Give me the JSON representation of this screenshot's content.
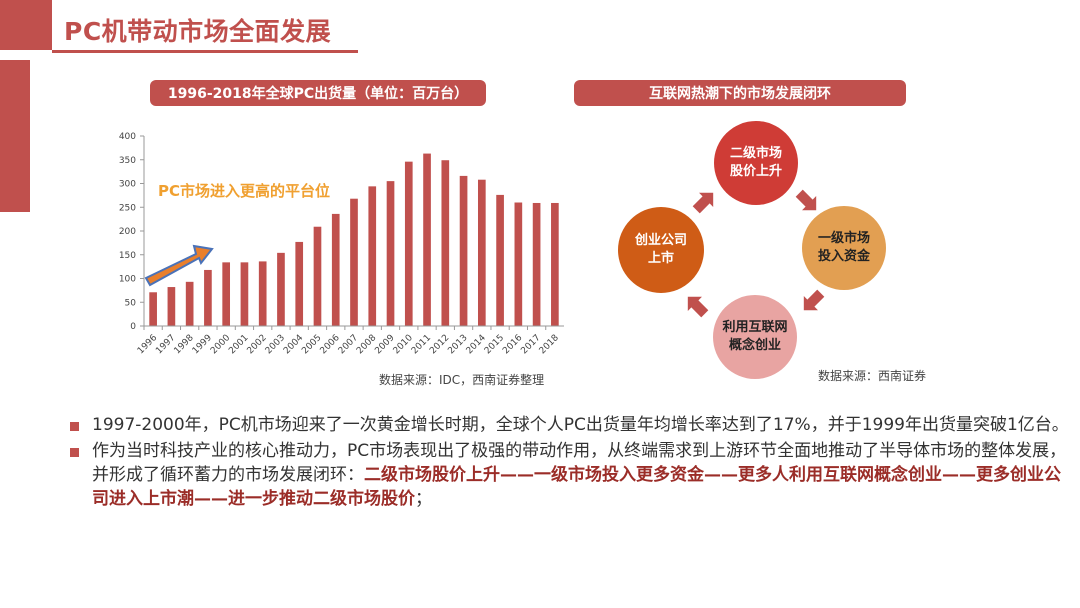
{
  "slide": {
    "title": "PC机带动市场全面发展"
  },
  "left_panel": {
    "heading": "1996-2018年全球PC出货量（单位：百万台）",
    "annotation": "PC市场进入更高的平台位",
    "source": "数据来源：IDC，西南证券整理"
  },
  "chart_data": {
    "type": "bar",
    "title": "1996-2018年全球PC出货量（单位：百万台）",
    "categories": [
      "1996",
      "1997",
      "1998",
      "1999",
      "2000",
      "2001",
      "2002",
      "2003",
      "2004",
      "2005",
      "2006",
      "2007",
      "2008",
      "2009",
      "2010",
      "2011",
      "2012",
      "2013",
      "2014",
      "2015",
      "2016",
      "2017",
      "2018"
    ],
    "values": [
      71,
      82,
      93,
      118,
      134,
      134,
      136,
      154,
      177,
      209,
      236,
      268,
      294,
      305,
      346,
      363,
      349,
      316,
      308,
      276,
      260,
      259,
      259
    ],
    "yticks": [
      "0",
      "50",
      "100",
      "150",
      "200",
      "250",
      "300",
      "350",
      "400"
    ],
    "ylim": [
      0,
      400
    ],
    "bar_color": "#c0504d",
    "grid": false
  },
  "right_panel": {
    "heading": "互联网热潮下的市场发展闭环",
    "source": "数据来源：西南证券",
    "nodes": {
      "top": {
        "line1": "二级市场",
        "line2": "股价上升"
      },
      "right": {
        "line1": "一级市场",
        "line2": "投入资金"
      },
      "bottom": {
        "line1": "利用互联网",
        "line2": "概念创业"
      },
      "left": {
        "line1": "创业公司",
        "line2": "上市"
      }
    },
    "colors": {
      "top": "#cf3c36",
      "right": "#e29f52",
      "bottom": "#e8a4a2",
      "left": "#cf5c16",
      "arrow": "#c0504d"
    }
  },
  "bullets": {
    "item1": "1997-2000年，PC机市场迎来了一次黄金增长时期，全球个人PC出货量年均增长率达到了17%，并于1999年出货量突破1亿台。",
    "item2_plain": "作为当时科技产业的核心推动力，PC市场表现出了极强的带动作用，从终端需求到上游环节全面地推动了半导体市场的整体发展，并形成了循环蓄力的市场发展闭环：",
    "item2_bold": "二级市场股价上升——一级市场投入更多资金——更多人利用互联网概念创业——更多创业公司进入上市潮——进一步推动二级市场股价",
    "item2_end": "；"
  }
}
